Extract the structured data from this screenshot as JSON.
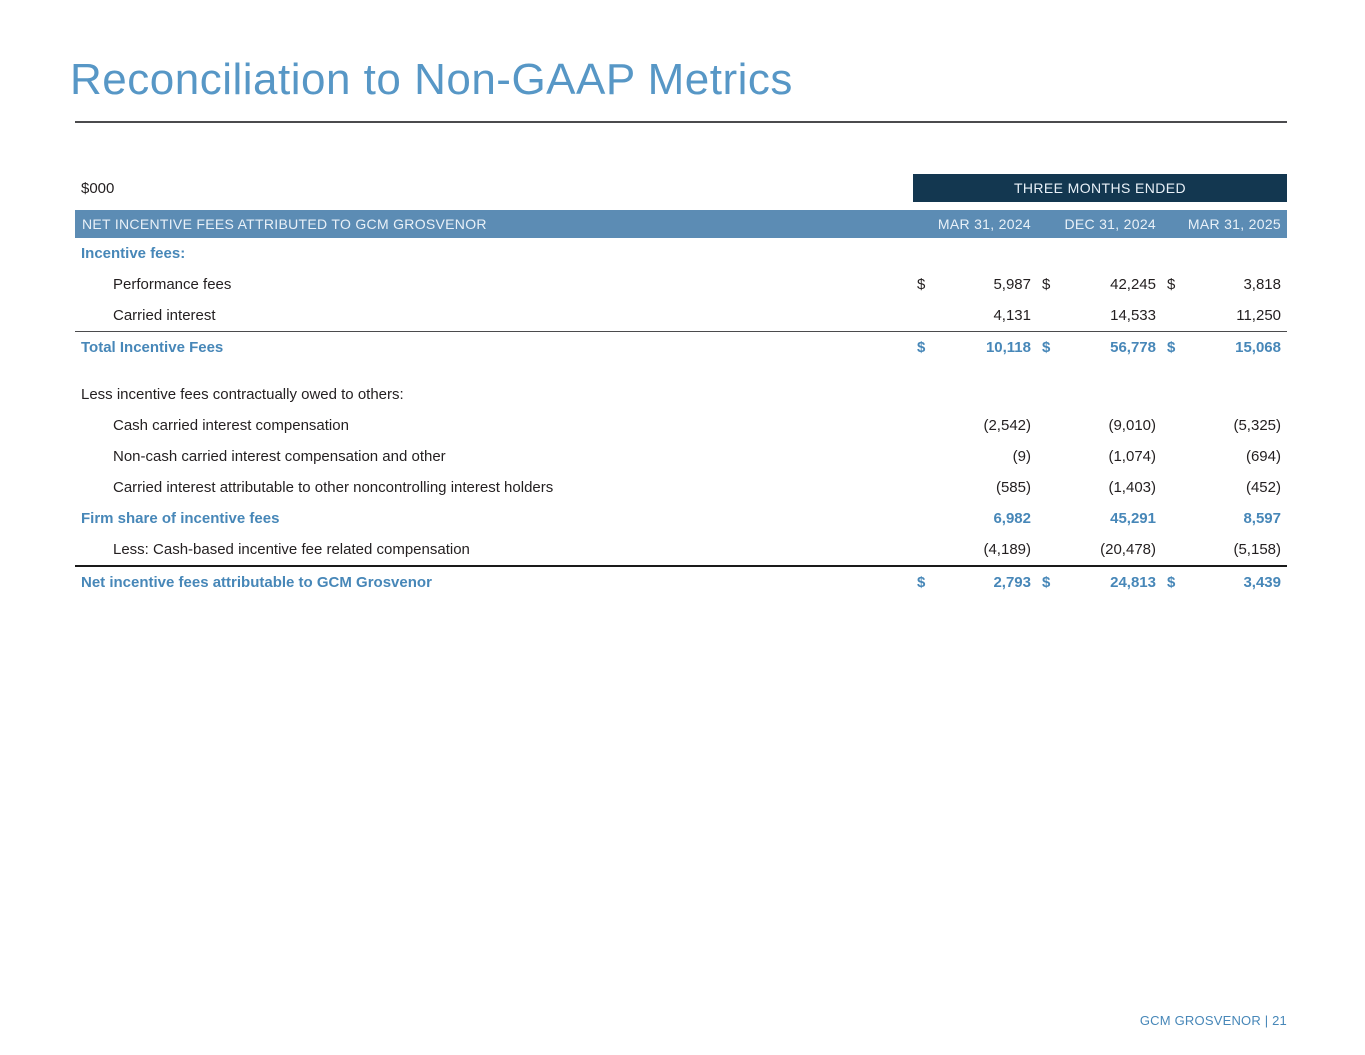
{
  "page": {
    "title": "Reconciliation to Non-GAAP Metrics",
    "footer": "GCM GROSVENOR | 21"
  },
  "table": {
    "units_label": "$000",
    "period_header": "THREE MONTHS ENDED",
    "section_header": "NET INCENTIVE FEES ATTRIBUTED TO GCM GROSVENOR",
    "currency_symbol": "$",
    "columns": [
      "MAR 31, 2024",
      "DEC 31, 2024",
      "MAR 31, 2025"
    ],
    "rows": [
      {
        "label": "Incentive fees:",
        "style": "subheader-blue"
      },
      {
        "label": "Performance fees",
        "style": "indent",
        "dollar": true,
        "values": [
          "5,987",
          "42,245",
          "3,818"
        ]
      },
      {
        "label": "Carried interest",
        "style": "indent",
        "values": [
          "4,131",
          "14,533",
          "11,250"
        ]
      },
      {
        "label": "Total Incentive Fees",
        "style": "total-blue",
        "dollar": true,
        "rule_above": "thin",
        "values": [
          "10,118",
          "56,778",
          "15,068"
        ]
      },
      {
        "style": "spacer"
      },
      {
        "label": "Less incentive fees contractually owed to others:",
        "style": "plain"
      },
      {
        "label": "Cash carried interest compensation",
        "style": "indent",
        "values": [
          "(2,542)",
          "(9,010)",
          "(5,325)"
        ]
      },
      {
        "label": "Non-cash carried interest compensation and other",
        "style": "indent",
        "values": [
          "(9)",
          "(1,074)",
          "(694)"
        ]
      },
      {
        "label": "Carried interest attributable to other noncontrolling interest holders",
        "style": "indent",
        "values": [
          "(585)",
          "(1,403)",
          "(452)"
        ]
      },
      {
        "label": "Firm share of incentive fees",
        "style": "total-blue",
        "values": [
          "6,982",
          "45,291",
          "8,597"
        ]
      },
      {
        "label": "Less: Cash-based incentive fee related compensation",
        "style": "indent",
        "values": [
          "(4,189)",
          "(20,478)",
          "(5,158)"
        ]
      },
      {
        "label": "Net incentive fees attributable to GCM Grosvenor",
        "style": "total-blue",
        "dollar": true,
        "rule_above": "thick",
        "values": [
          "2,793",
          "24,813",
          "3,439"
        ]
      }
    ]
  },
  "colors": {
    "title_blue": "#5797C6",
    "accent_blue": "#4787B8",
    "banner_blue": "#5C8CB4",
    "banner_navy": "#133750",
    "text_dark": "#231F20",
    "rule_gray": "#4B4B4D",
    "rule_black": "#1A1A1A"
  }
}
